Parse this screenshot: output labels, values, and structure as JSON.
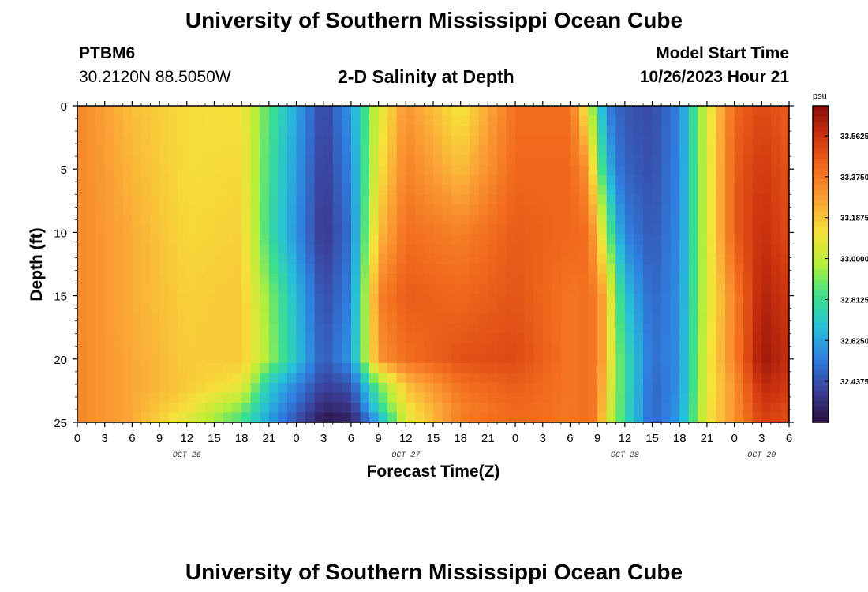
{
  "header": {
    "title": "University of Southern Mississippi Ocean Cube",
    "station_id": "PTBM6",
    "coords": "30.2120N  88.5050W",
    "chart_title": "2-D Salinity at Depth",
    "model_start_label": "Model Start Time",
    "model_start_value": "10/26/2023 Hour 21"
  },
  "footer": {
    "title": "University of Southern Mississippi Ocean Cube"
  },
  "chart_data": {
    "type": "heatmap",
    "title": "2-D Salinity at Depth",
    "xlabel": "Forecast Time(Z)",
    "ylabel": "Depth (ft)",
    "x_ticks": [
      "0",
      "3",
      "6",
      "9",
      "12",
      "15",
      "18",
      "21",
      "0",
      "3",
      "6",
      "9",
      "12",
      "15",
      "18",
      "21",
      "0",
      "3",
      "6",
      "9",
      "12",
      "15",
      "18",
      "21",
      "0",
      "3",
      "6"
    ],
    "day_labels": [
      {
        "label": "OCT 26",
        "tick_index": 4
      },
      {
        "label": "OCT 27",
        "tick_index": 12
      },
      {
        "label": "OCT 28",
        "tick_index": 20
      },
      {
        "label": "OCT 29",
        "tick_index": 25
      }
    ],
    "y_ticks": [
      "0",
      "5",
      "10",
      "15",
      "20",
      "25"
    ],
    "ylim": [
      25,
      0
    ],
    "x_hours_range": [
      0,
      78
    ],
    "colorbar": {
      "unit": "psu",
      "ticks": [
        "33.5625",
        "33.3750",
        "33.1875",
        "33.0000",
        "32.8125",
        "32.6250",
        "32.4375"
      ],
      "range": [
        32.25,
        33.7
      ],
      "colors": [
        "#2d0f3f",
        "#3b3f98",
        "#2f7ee0",
        "#27c1d8",
        "#3ee08a",
        "#b6ef3a",
        "#f6e23a",
        "#fba236",
        "#f26b1d",
        "#d0360f",
        "#8a0b0a"
      ]
    },
    "depths_ft": [
      0,
      5,
      10,
      15,
      20,
      22,
      24,
      25
    ],
    "salinity_profiles": [
      {
        "hour": 0,
        "values": [
          33.34,
          33.34,
          33.34,
          33.34,
          33.34,
          33.34,
          33.34,
          33.34
        ]
      },
      {
        "hour": 6,
        "values": [
          33.2,
          33.22,
          33.24,
          33.24,
          33.25,
          33.25,
          33.25,
          33.25
        ]
      },
      {
        "hour": 12,
        "values": [
          33.13,
          33.13,
          33.14,
          33.16,
          33.17,
          33.18,
          33.12,
          33.05
        ]
      },
      {
        "hour": 18,
        "values": [
          33.12,
          33.14,
          33.16,
          33.18,
          33.18,
          33.1,
          32.9,
          32.82
        ]
      },
      {
        "hour": 21,
        "values": [
          32.85,
          32.82,
          32.8,
          32.92,
          32.95,
          32.72,
          32.64,
          32.6
        ]
      },
      {
        "hour": 27,
        "values": [
          32.4,
          32.38,
          32.36,
          32.42,
          32.45,
          32.4,
          32.32,
          32.26
        ]
      },
      {
        "hour": 30,
        "values": [
          32.6,
          32.56,
          32.52,
          32.55,
          32.6,
          32.45,
          32.35,
          32.3
        ]
      },
      {
        "hour": 33,
        "values": [
          33.05,
          33.1,
          33.2,
          33.35,
          33.3,
          32.9,
          32.75,
          32.6
        ]
      },
      {
        "hour": 36,
        "values": [
          33.3,
          33.35,
          33.4,
          33.45,
          33.4,
          33.2,
          33.1,
          33.05
        ]
      },
      {
        "hour": 42,
        "values": [
          33.1,
          33.2,
          33.35,
          33.42,
          33.48,
          33.4,
          33.35,
          33.38
        ]
      },
      {
        "hour": 48,
        "values": [
          33.4,
          33.42,
          33.45,
          33.47,
          33.5,
          33.45,
          33.42,
          33.42
        ]
      },
      {
        "hour": 54,
        "values": [
          33.4,
          33.42,
          33.42,
          33.38,
          33.38,
          33.38,
          33.38,
          33.38
        ]
      },
      {
        "hour": 56,
        "values": [
          33.05,
          33.3,
          33.4,
          33.4,
          33.4,
          33.4,
          33.4,
          33.4
        ]
      },
      {
        "hour": 57,
        "values": [
          32.8,
          32.95,
          33.2,
          33.35,
          33.35,
          33.35,
          33.35,
          33.35
        ]
      },
      {
        "hour": 58,
        "values": [
          32.55,
          32.7,
          32.95,
          33.2,
          33.2,
          33.15,
          33.1,
          33.05
        ]
      },
      {
        "hour": 59,
        "values": [
          32.5,
          32.55,
          32.7,
          32.92,
          32.95,
          32.95,
          32.95,
          32.95
        ]
      },
      {
        "hour": 60,
        "values": [
          32.45,
          32.48,
          32.55,
          32.7,
          32.8,
          32.8,
          32.78,
          32.78
        ]
      },
      {
        "hour": 63,
        "values": [
          32.42,
          32.43,
          32.45,
          32.48,
          32.5,
          32.48,
          32.48,
          32.48
        ]
      },
      {
        "hour": 66,
        "values": [
          32.55,
          32.56,
          32.57,
          32.58,
          32.58,
          32.58,
          32.6,
          32.6
        ]
      },
      {
        "hour": 69,
        "values": [
          33.05,
          33.05,
          33.05,
          33.05,
          33.08,
          33.08,
          33.1,
          33.1
        ]
      },
      {
        "hour": 72,
        "values": [
          33.42,
          33.45,
          33.45,
          33.35,
          33.35,
          33.3,
          33.3,
          33.3
        ]
      },
      {
        "hour": 75,
        "values": [
          33.5,
          33.55,
          33.58,
          33.62,
          33.66,
          33.6,
          33.55,
          33.52
        ]
      },
      {
        "hour": 78,
        "values": [
          33.45,
          33.48,
          33.5,
          33.55,
          33.58,
          33.55,
          33.5,
          33.5
        ]
      }
    ]
  }
}
